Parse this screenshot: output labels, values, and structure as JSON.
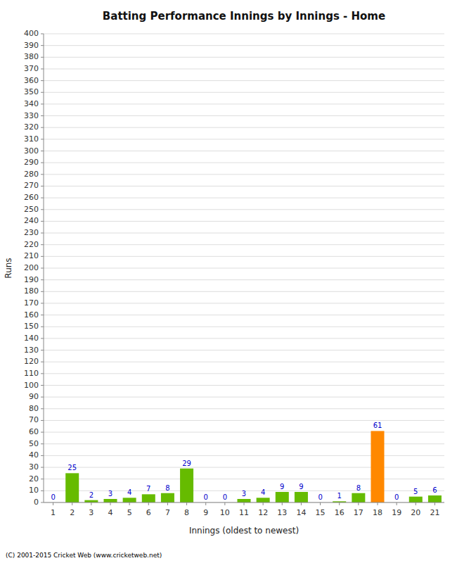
{
  "chart_data": {
    "type": "bar",
    "title": "Batting Performance Innings by Innings - Home",
    "x_label": "Innings (oldest to newest)",
    "y_label": "Runs",
    "categories": [
      "1",
      "2",
      "3",
      "4",
      "5",
      "6",
      "7",
      "8",
      "9",
      "10",
      "11",
      "12",
      "13",
      "14",
      "15",
      "16",
      "17",
      "18",
      "19",
      "20",
      "21"
    ],
    "values": [
      0,
      25,
      2,
      3,
      4,
      7,
      8,
      29,
      0,
      0,
      3,
      4,
      9,
      9,
      0,
      1,
      8,
      61,
      0,
      5,
      6
    ],
    "colors": [
      "#66bb00",
      "#66bb00",
      "#66bb00",
      "#66bb00",
      "#66bb00",
      "#66bb00",
      "#66bb00",
      "#66bb00",
      "#66bb00",
      "#66bb00",
      "#66bb00",
      "#66bb00",
      "#66bb00",
      "#66bb00",
      "#66bb00",
      "#66bb00",
      "#66bb00",
      "#ff8800",
      "#66bb00",
      "#66bb00",
      "#66bb00"
    ],
    "ylim": [
      0,
      400
    ],
    "yticks": [
      0,
      10,
      20,
      30,
      40,
      50,
      60,
      70,
      80,
      90,
      100,
      110,
      120,
      130,
      140,
      150,
      160,
      170,
      180,
      190,
      200,
      210,
      220,
      230,
      240,
      250,
      260,
      270,
      280,
      290,
      300,
      310,
      320,
      330,
      340,
      350,
      360,
      370,
      380,
      390,
      400
    ],
    "grid": true,
    "data_labels": true,
    "annotations": [
      "(C) 2001-2015 Cricket Web (www.cricketweb.net)"
    ]
  }
}
